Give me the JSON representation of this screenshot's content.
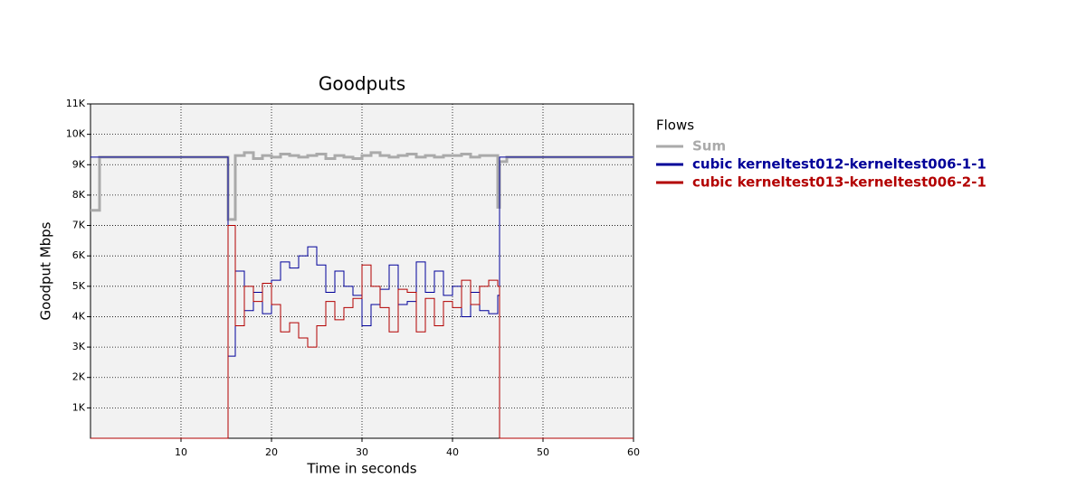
{
  "chart_data": {
    "type": "line",
    "title": "Goodputs",
    "x_label": "Time in seconds",
    "y_label": "Goodput Mbps",
    "legend_title": "Flows",
    "legend": "outside-right",
    "grid": true,
    "step": true,
    "xlim": [
      0,
      60
    ],
    "ylim": [
      0,
      11000
    ],
    "xticks": [
      10,
      20,
      30,
      40,
      50,
      60
    ],
    "yticks": [
      {
        "value": 1000,
        "label": "1K"
      },
      {
        "value": 2000,
        "label": "2K"
      },
      {
        "value": 3000,
        "label": "3K"
      },
      {
        "value": 4000,
        "label": "4K"
      },
      {
        "value": 5000,
        "label": "5K"
      },
      {
        "value": 6000,
        "label": "6K"
      },
      {
        "value": 7000,
        "label": "7K"
      },
      {
        "value": 8000,
        "label": "8K"
      },
      {
        "value": 9000,
        "label": "9K"
      },
      {
        "value": 10000,
        "label": "10K"
      },
      {
        "value": 11000,
        "label": "11K"
      }
    ],
    "x": [
      0,
      1,
      2,
      3,
      4,
      5,
      6,
      7,
      8,
      9,
      10,
      11,
      12,
      13,
      14,
      15,
      15.2,
      16,
      17,
      18,
      19,
      20,
      21,
      22,
      23,
      24,
      25,
      26,
      27,
      28,
      29,
      30,
      31,
      32,
      33,
      34,
      35,
      36,
      37,
      38,
      39,
      40,
      41,
      42,
      43,
      44,
      45,
      45.2,
      46,
      47,
      48,
      49,
      50,
      51,
      52,
      53,
      54,
      55,
      56,
      57,
      58,
      59,
      60
    ],
    "series": [
      {
        "name": "Sum",
        "color": "#aaaaaa",
        "width": 3,
        "values": [
          7500,
          9250,
          9250,
          9250,
          9250,
          9250,
          9250,
          9250,
          9250,
          9250,
          9250,
          9250,
          9250,
          9250,
          9250,
          9250,
          7200,
          9300,
          9400,
          9200,
          9300,
          9250,
          9350,
          9300,
          9250,
          9300,
          9350,
          9200,
          9300,
          9250,
          9200,
          9300,
          9400,
          9300,
          9250,
          9300,
          9350,
          9250,
          9300,
          9250,
          9300,
          9300,
          9350,
          9250,
          9300,
          9300,
          7600,
          9100,
          9250,
          9250,
          9250,
          9250,
          9250,
          9250,
          9250,
          9250,
          9250,
          9250,
          9250,
          9250,
          9250,
          9250,
          9250
        ]
      },
      {
        "name": "cubic kerneltest012-kerneltest006-1-1",
        "color": "#000099",
        "width": 1,
        "values": [
          9250,
          9250,
          9250,
          9250,
          9250,
          9250,
          9250,
          9250,
          9250,
          9250,
          9250,
          9250,
          9250,
          9250,
          9250,
          9250,
          2700,
          5500,
          4200,
          4800,
          4100,
          5200,
          5800,
          5600,
          6000,
          6300,
          5700,
          4800,
          5500,
          5000,
          4700,
          3700,
          4400,
          4900,
          5700,
          4400,
          4500,
          5800,
          4800,
          5500,
          4700,
          5000,
          4000,
          4800,
          4200,
          4100,
          4700,
          9250,
          9250,
          9250,
          9250,
          9250,
          9250,
          9250,
          9250,
          9250,
          9250,
          9250,
          9250,
          9250,
          9250,
          9250,
          9250
        ]
      },
      {
        "name": "cubic kerneltest013-kerneltest006-2-1",
        "color": "#b30000",
        "width": 1,
        "values": [
          0,
          0,
          0,
          0,
          0,
          0,
          0,
          0,
          0,
          0,
          0,
          0,
          0,
          0,
          0,
          0,
          7000,
          3700,
          5000,
          4500,
          5100,
          4400,
          3500,
          3800,
          3300,
          3000,
          3700,
          4500,
          3900,
          4300,
          4600,
          5700,
          5000,
          4300,
          3500,
          4900,
          4800,
          3500,
          4600,
          3700,
          4500,
          4300,
          5200,
          4400,
          5000,
          5200,
          5000,
          0,
          0,
          0,
          0,
          0,
          0,
          0,
          0,
          0,
          0,
          0,
          0,
          0,
          0,
          0,
          0
        ]
      }
    ]
  }
}
